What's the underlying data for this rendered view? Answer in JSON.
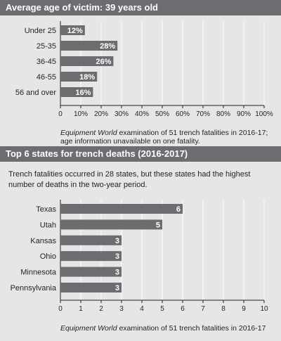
{
  "chart_data": [
    {
      "type": "bar",
      "orientation": "horizontal",
      "title": "Average age of victim: 39 years old",
      "categories": [
        "Under 25",
        "25-35",
        "36-45",
        "46-55",
        "56 and over"
      ],
      "values": [
        12,
        28,
        26,
        18,
        16
      ],
      "value_labels": [
        "12%",
        "28%",
        "26%",
        "18%",
        "16%"
      ],
      "xlim": [
        0,
        100
      ],
      "xticks": [
        0,
        10,
        20,
        30,
        40,
        50,
        60,
        70,
        80,
        90,
        100
      ],
      "xtick_labels": [
        "0",
        "10%",
        "20%",
        "30%",
        "40%",
        "50%",
        "60%",
        "70%",
        "80%",
        "90%",
        "100%"
      ],
      "grid": true,
      "note_source": "Equipment World",
      "note_line1": " examination of 51 trench fatalities in 2016-17;",
      "note_line2": "age information unavailable on one fatality.",
      "bar_color": "#6b6d70"
    },
    {
      "type": "bar",
      "orientation": "horizontal",
      "title": "Top 6 states for trench deaths (2016-2017)",
      "subtitle": "Trench fatalities occurred in 28 states, but these states had the highest number of deaths in the two-year period.",
      "categories": [
        "Texas",
        "Utah",
        "Kansas",
        "Ohio",
        "Minnesota",
        "Pennsylvania"
      ],
      "values": [
        6,
        5,
        3,
        3,
        3,
        3
      ],
      "value_labels": [
        "6",
        "5",
        "3",
        "3",
        "3",
        "3"
      ],
      "xlim": [
        0,
        10
      ],
      "xticks": [
        0,
        1,
        2,
        3,
        4,
        5,
        6,
        7,
        8,
        9,
        10
      ],
      "xtick_labels": [
        "0",
        "1",
        "2",
        "3",
        "4",
        "5",
        "6",
        "7",
        "8",
        "9",
        "10"
      ],
      "grid": true,
      "note_source": "Equipment World",
      "note_line1": " examination of 51 trench fatalities in 2016-17",
      "bar_color": "#6b6d70"
    }
  ]
}
